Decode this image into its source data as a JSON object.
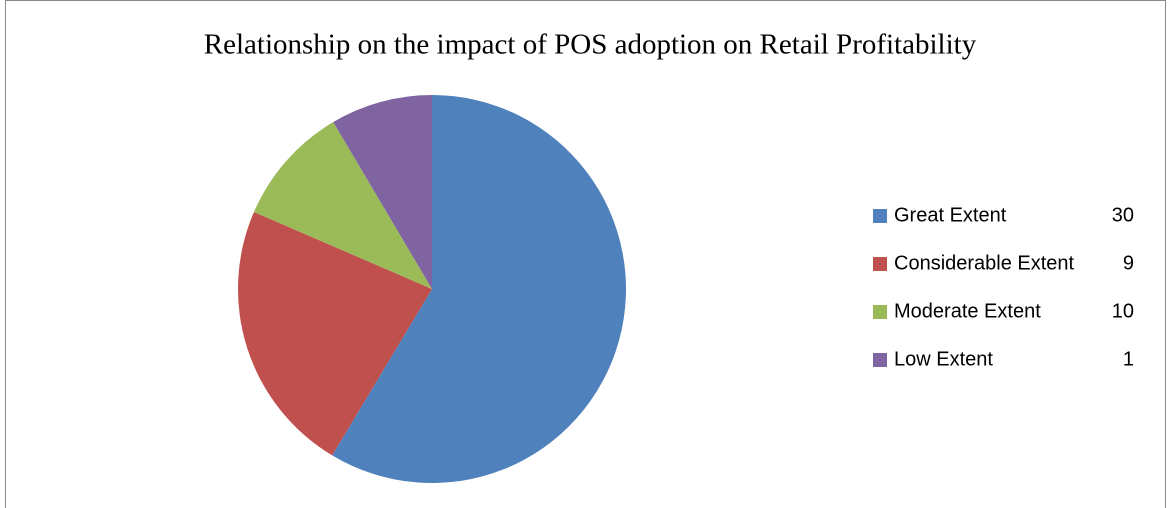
{
  "chart_data": {
    "type": "pie",
    "title": "Relationship on the impact of POS adoption on Retail Profitability",
    "categories": [
      "Great Extent",
      "Considerable Extent",
      "Moderate Extent",
      "Low Extent"
    ],
    "legend_numbers": [
      30,
      9,
      10,
      1
    ],
    "values": [
      58.6,
      22.9,
      10,
      8.5
    ],
    "colors": [
      "#4f81bd",
      "#c0504d",
      "#9bbb59",
      "#8064a2"
    ],
    "legend": "right"
  }
}
